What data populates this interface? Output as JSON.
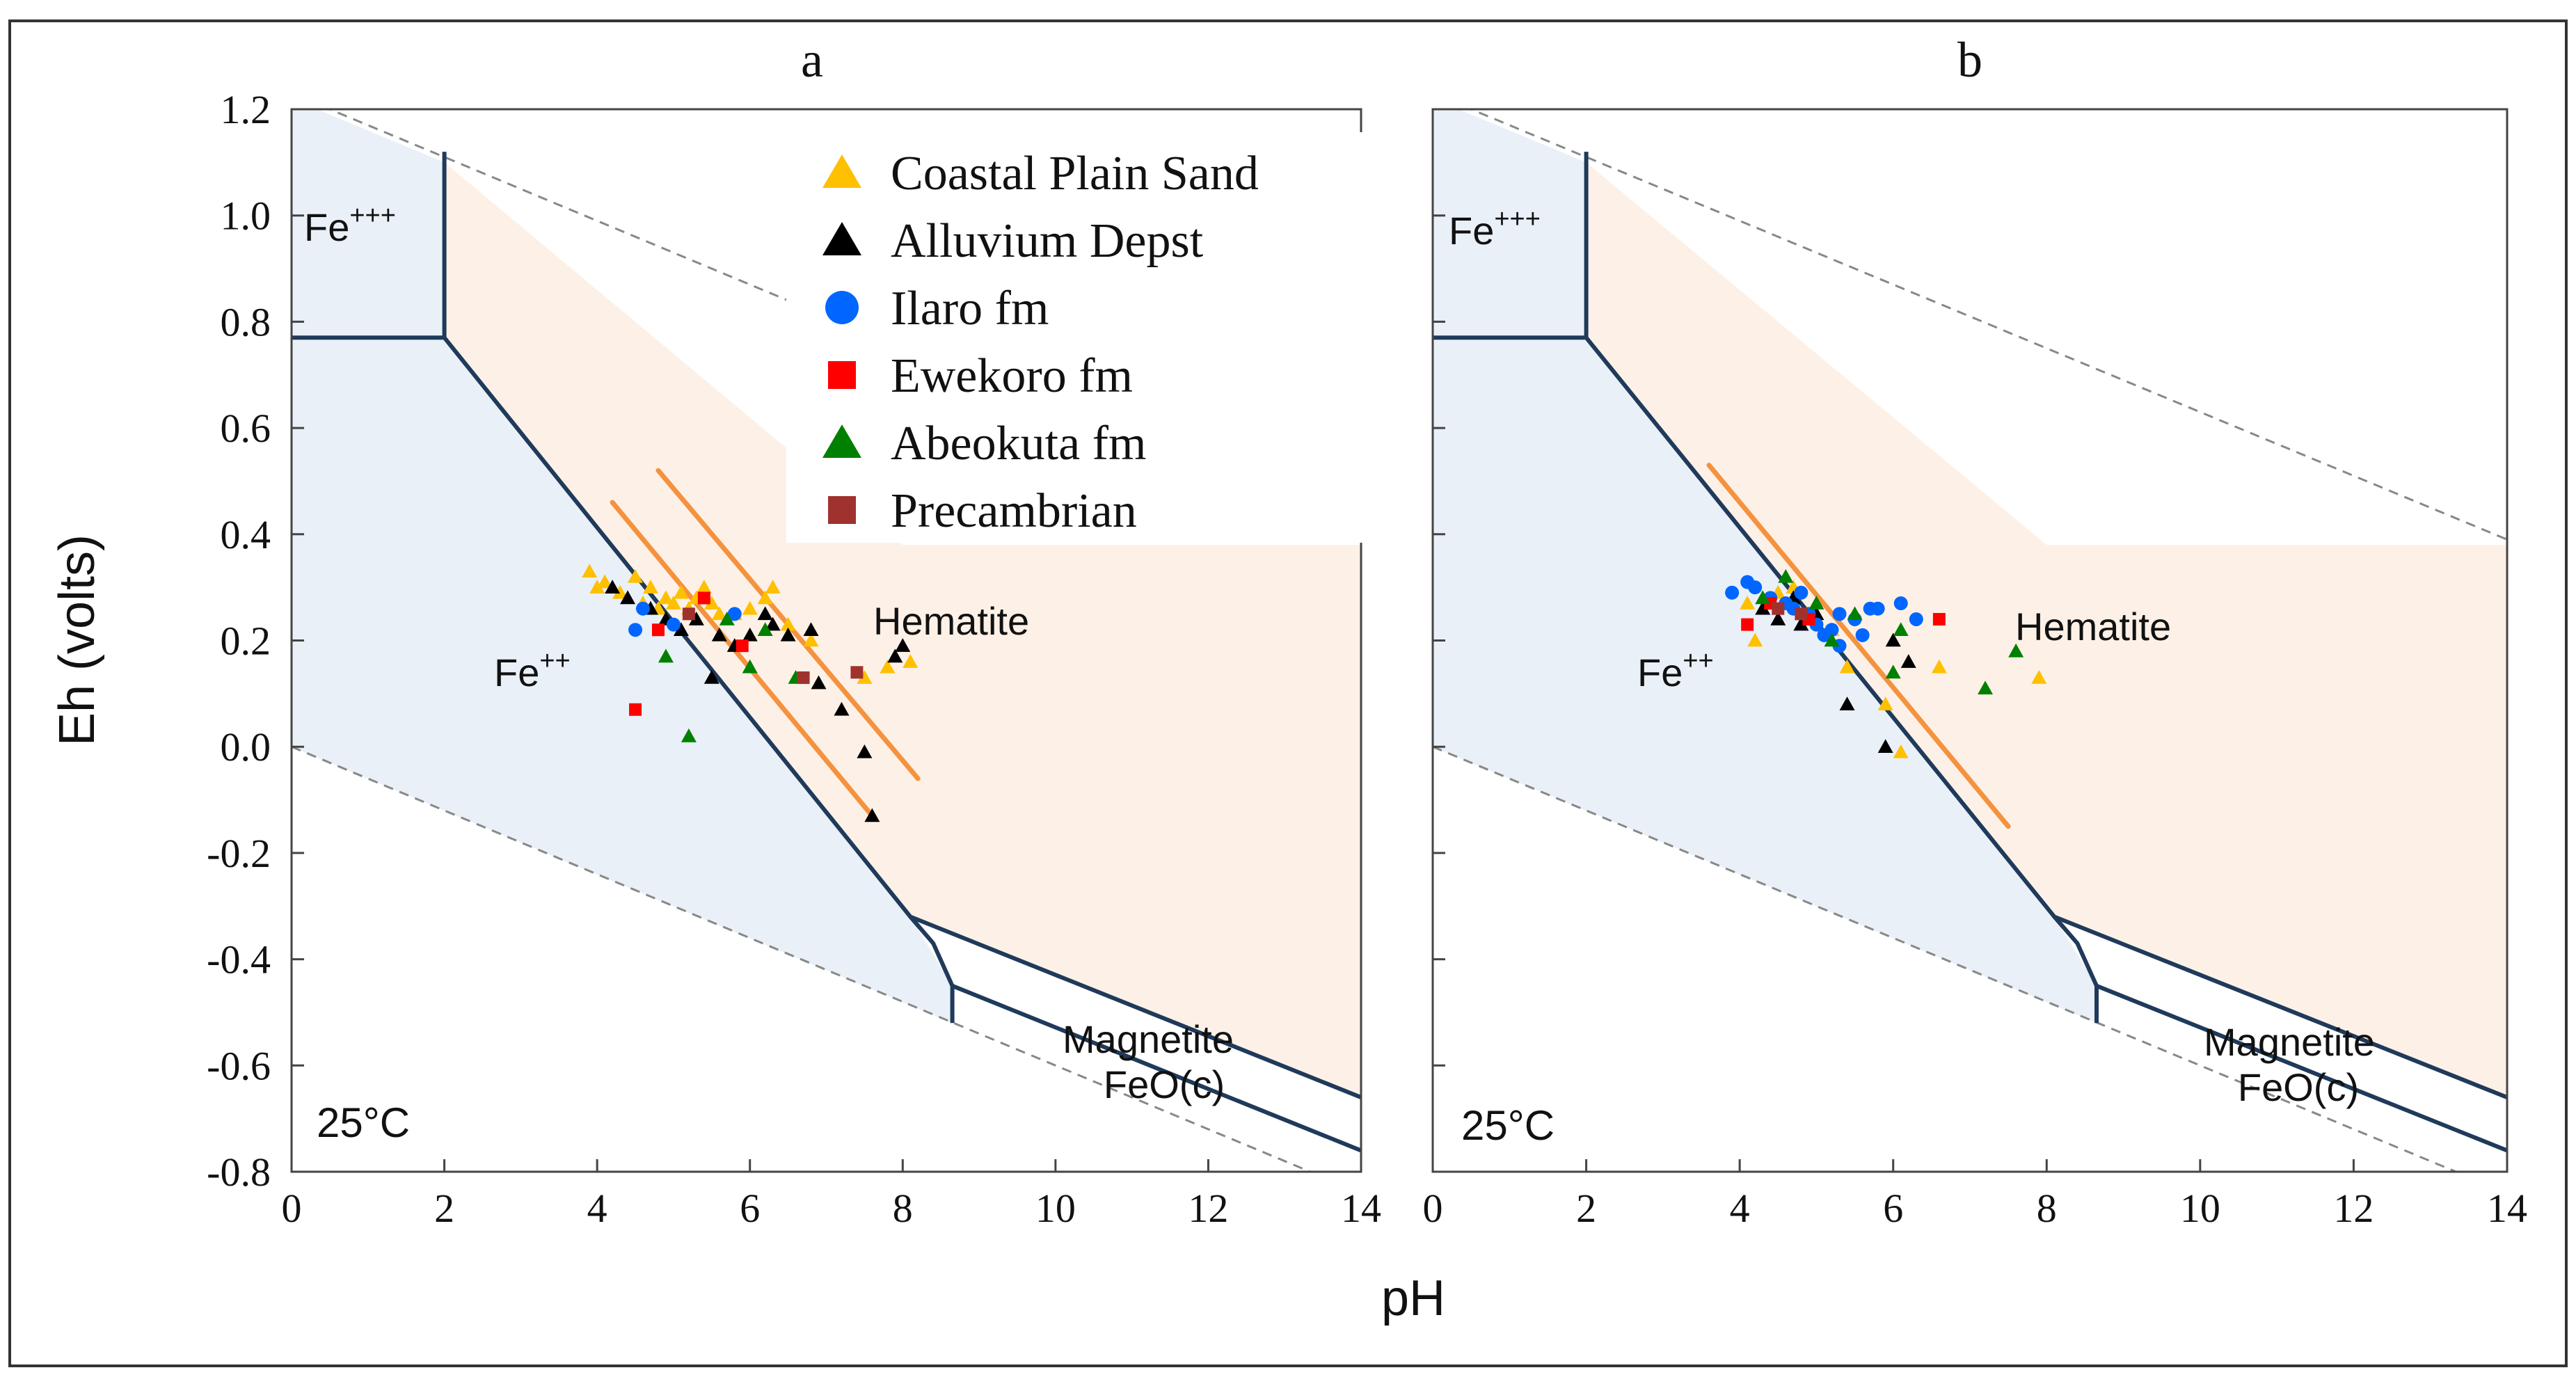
{
  "chart_data": [
    {
      "type": "scatter",
      "panel_label": "a",
      "title": "",
      "xlabel": "pH",
      "ylabel": "Eh (volts)",
      "xlim": [
        0,
        14
      ],
      "ylim": [
        -0.8,
        1.2
      ],
      "xticks": [
        "0",
        "2",
        "4",
        "6",
        "8",
        "10",
        "12",
        "14"
      ],
      "yticks": [
        "1.2",
        "1.0",
        "0.8",
        "0.6",
        "0.4",
        "0.2",
        "0.0",
        "-0.2",
        "-0.4",
        "-0.6",
        "-0.8"
      ],
      "temperature_label": "25°C",
      "zones": [
        {
          "name": "Fe+++",
          "text": "Fe",
          "superscript": "+++"
        },
        {
          "name": "Fe++",
          "text": "Fe",
          "superscript": "++"
        },
        {
          "name": "Hematite",
          "text": "Hematite"
        },
        {
          "name": "Magnetite",
          "text": "Magnetite"
        },
        {
          "name": "FeO(c)",
          "text": "FeO(c)"
        }
      ],
      "trend_lines": [
        {
          "x": [
            4.2,
            7.6
          ],
          "y": [
            0.46,
            -0.13
          ]
        },
        {
          "x": [
            4.8,
            8.2
          ],
          "y": [
            0.52,
            -0.06
          ]
        }
      ],
      "series": [
        {
          "name": "Coastal Plain Sand",
          "marker": "triangle",
          "color": "#FFC000",
          "points": [
            [
              3.9,
              0.33
            ],
            [
              4.0,
              0.3
            ],
            [
              4.1,
              0.31
            ],
            [
              4.3,
              0.29
            ],
            [
              4.5,
              0.32
            ],
            [
              4.6,
              0.27
            ],
            [
              4.7,
              0.3
            ],
            [
              4.8,
              0.26
            ],
            [
              4.9,
              0.28
            ],
            [
              5.0,
              0.27
            ],
            [
              5.1,
              0.29
            ],
            [
              5.2,
              0.26
            ],
            [
              5.3,
              0.28
            ],
            [
              5.4,
              0.3
            ],
            [
              5.5,
              0.27
            ],
            [
              5.6,
              0.25
            ],
            [
              5.8,
              0.25
            ],
            [
              6.0,
              0.26
            ],
            [
              6.2,
              0.28
            ],
            [
              6.3,
              0.3
            ],
            [
              6.5,
              0.23
            ],
            [
              6.8,
              0.2
            ],
            [
              7.5,
              0.13
            ],
            [
              7.8,
              0.15
            ],
            [
              8.1,
              0.16
            ]
          ]
        },
        {
          "name": "Alluvium Depst",
          "marker": "triangle",
          "color": "#000000",
          "points": [
            [
              4.2,
              0.3
            ],
            [
              4.4,
              0.28
            ],
            [
              4.7,
              0.26
            ],
            [
              4.9,
              0.24
            ],
            [
              5.1,
              0.22
            ],
            [
              5.3,
              0.24
            ],
            [
              5.6,
              0.21
            ],
            [
              5.8,
              0.19
            ],
            [
              6.0,
              0.21
            ],
            [
              6.2,
              0.25
            ],
            [
              6.3,
              0.23
            ],
            [
              6.5,
              0.21
            ],
            [
              6.8,
              0.22
            ],
            [
              6.9,
              0.12
            ],
            [
              7.2,
              0.07
            ],
            [
              7.5,
              -0.01
            ],
            [
              7.6,
              -0.13
            ],
            [
              7.9,
              0.17
            ],
            [
              8.0,
              0.19
            ],
            [
              5.5,
              0.13
            ]
          ]
        },
        {
          "name": "Ilaro fm",
          "marker": "circle",
          "color": "#0066FF",
          "points": [
            [
              4.5,
              0.22
            ],
            [
              4.6,
              0.26
            ],
            [
              5.0,
              0.23
            ],
            [
              5.8,
              0.25
            ]
          ]
        },
        {
          "name": "Ewekoro fm",
          "marker": "square",
          "color": "#FF0000",
          "points": [
            [
              4.5,
              0.07
            ],
            [
              4.8,
              0.22
            ],
            [
              5.4,
              0.28
            ],
            [
              5.9,
              0.19
            ]
          ]
        },
        {
          "name": "Abeokuta fm",
          "marker": "triangle",
          "color": "#008000",
          "points": [
            [
              4.9,
              0.17
            ],
            [
              5.2,
              0.02
            ],
            [
              5.7,
              0.24
            ],
            [
              6.0,
              0.15
            ],
            [
              6.2,
              0.22
            ],
            [
              6.6,
              0.13
            ]
          ]
        },
        {
          "name": "Precambrian",
          "marker": "square",
          "color": "#A0322D",
          "points": [
            [
              5.2,
              0.25
            ],
            [
              6.7,
              0.13
            ],
            [
              7.4,
              0.14
            ]
          ]
        }
      ]
    },
    {
      "type": "scatter",
      "panel_label": "b",
      "title": "",
      "xlabel": "pH",
      "ylabel": "Eh (volts)",
      "xlim": [
        0,
        14
      ],
      "ylim": [
        -0.8,
        1.2
      ],
      "xticks": [
        "0",
        "2",
        "4",
        "6",
        "8",
        "10",
        "12",
        "14"
      ],
      "yticks": [],
      "temperature_label": "25°C",
      "zones": [
        {
          "name": "Fe+++",
          "text": "Fe",
          "superscript": "+++"
        },
        {
          "name": "Fe++",
          "text": "Fe",
          "superscript": "++"
        },
        {
          "name": "Hematite",
          "text": "Hematite"
        },
        {
          "name": "Magnetite",
          "text": "Magnetite"
        },
        {
          "name": "FeO(c)",
          "text": "FeO(c)"
        }
      ],
      "trend_lines": [
        {
          "x": [
            3.6,
            7.5
          ],
          "y": [
            0.53,
            -0.15
          ]
        }
      ],
      "series": [
        {
          "name": "Coastal Plain Sand",
          "marker": "triangle",
          "color": "#FFC000",
          "points": [
            [
              4.1,
              0.27
            ],
            [
              4.2,
              0.2
            ],
            [
              4.5,
              0.29
            ],
            [
              4.7,
              0.3
            ],
            [
              5.2,
              0.22
            ],
            [
              5.4,
              0.15
            ],
            [
              5.9,
              0.08
            ],
            [
              6.1,
              -0.01
            ],
            [
              6.6,
              0.15
            ],
            [
              7.9,
              0.13
            ]
          ]
        },
        {
          "name": "Alluvium Depst",
          "marker": "triangle",
          "color": "#000000",
          "points": [
            [
              4.3,
              0.26
            ],
            [
              4.5,
              0.24
            ],
            [
              4.7,
              0.28
            ],
            [
              5.0,
              0.25
            ],
            [
              5.4,
              0.08
            ],
            [
              5.9,
              0.0
            ],
            [
              6.0,
              0.2
            ],
            [
              6.2,
              0.16
            ],
            [
              4.8,
              0.23
            ]
          ]
        },
        {
          "name": "Ilaro fm",
          "marker": "circle",
          "color": "#0066FF",
          "points": [
            [
              3.9,
              0.29
            ],
            [
              4.1,
              0.31
            ],
            [
              4.2,
              0.3
            ],
            [
              4.4,
              0.28
            ],
            [
              4.6,
              0.27
            ],
            [
              4.7,
              0.26
            ],
            [
              4.8,
              0.29
            ],
            [
              4.9,
              0.25
            ],
            [
              5.0,
              0.23
            ],
            [
              5.1,
              0.21
            ],
            [
              5.2,
              0.22
            ],
            [
              5.3,
              0.19
            ],
            [
              5.5,
              0.24
            ],
            [
              5.6,
              0.21
            ],
            [
              5.7,
              0.26
            ],
            [
              5.8,
              0.26
            ],
            [
              6.1,
              0.27
            ],
            [
              6.3,
              0.24
            ],
            [
              5.3,
              0.25
            ]
          ]
        },
        {
          "name": "Ewekoro fm",
          "marker": "square",
          "color": "#FF0000",
          "points": [
            [
              4.1,
              0.23
            ],
            [
              4.4,
              0.27
            ],
            [
              4.9,
              0.24
            ],
            [
              6.6,
              0.24
            ]
          ]
        },
        {
          "name": "Abeokuta fm",
          "marker": "triangle",
          "color": "#008000",
          "points": [
            [
              4.3,
              0.28
            ],
            [
              4.6,
              0.32
            ],
            [
              5.0,
              0.27
            ],
            [
              5.2,
              0.2
            ],
            [
              5.5,
              0.25
            ],
            [
              6.0,
              0.14
            ],
            [
              6.1,
              0.22
            ],
            [
              7.2,
              0.11
            ],
            [
              7.6,
              0.18
            ]
          ]
        },
        {
          "name": "Precambrian",
          "marker": "square",
          "color": "#A0322D",
          "points": [
            [
              4.5,
              0.26
            ],
            [
              4.8,
              0.25
            ]
          ]
        }
      ]
    }
  ],
  "legend": {
    "placement": "top-right of panel a",
    "entries": [
      {
        "label": "Coastal Plain Sand",
        "marker": "triangle",
        "color": "#FFC000"
      },
      {
        "label": "Alluvium Depst",
        "marker": "triangle",
        "color": "#000000"
      },
      {
        "label": "Ilaro fm",
        "marker": "circle",
        "color": "#0066FF"
      },
      {
        "label": "Ewekoro fm",
        "marker": "square",
        "color": "#FF0000"
      },
      {
        "label": "Abeokuta fm",
        "marker": "triangle",
        "color": "#008000"
      },
      {
        "label": "Precambrian",
        "marker": "square",
        "color": "#A0322D"
      }
    ]
  },
  "colors": {
    "blue_zone": "#EAF0F8",
    "peach_zone": "#FDF1E7",
    "boundary": "#1F3A5A",
    "trend": "#F5923E",
    "frame": "#333333"
  }
}
